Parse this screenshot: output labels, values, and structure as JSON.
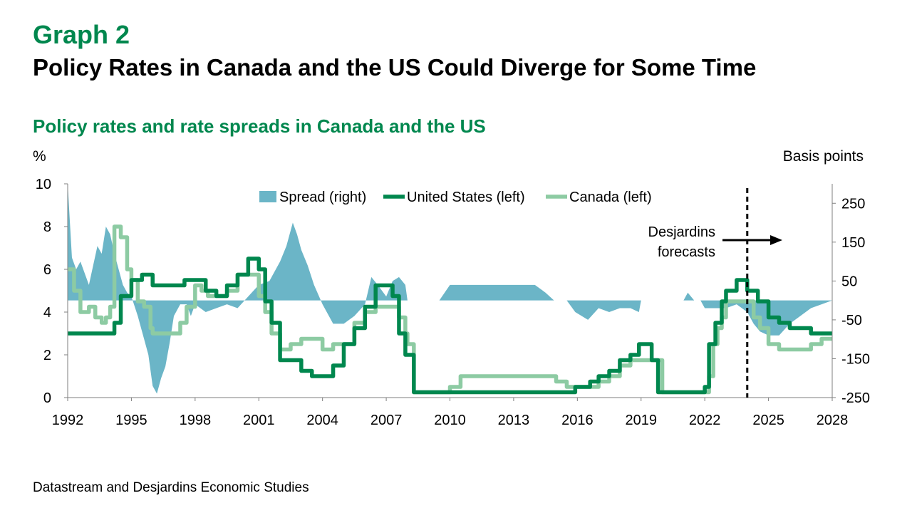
{
  "header": {
    "graph_number": "Graph 2",
    "title": "Policy Rates in Canada and the US Could Diverge for Some Time",
    "subtitle": "Policy rates and rate spreads in Canada and the US"
  },
  "footer": {
    "source": "Datastream and Desjardins Economic Studies"
  },
  "colors": {
    "spread": "#6bb5c7",
    "us": "#00874e",
    "canada": "#8dcba3",
    "title_green": "#00874e"
  },
  "chart_data": {
    "type": "line",
    "left_axis": {
      "label": "%",
      "min": 0,
      "max": 10,
      "ticks": [
        0,
        2,
        4,
        6,
        8,
        10
      ]
    },
    "right_axis": {
      "label": "Basis points",
      "min": -250,
      "max": 300,
      "ticks": [
        -250,
        -150,
        -50,
        50,
        150,
        250
      ]
    },
    "x_axis": {
      "min": 1992,
      "max": 2028,
      "ticks": [
        "1992",
        "1995",
        "1998",
        "2001",
        "2004",
        "2007",
        "2010",
        "2013",
        "2016",
        "2019",
        "2022",
        "2025",
        "2028"
      ]
    },
    "legend": {
      "position": "top-center"
    },
    "annotation": {
      "text_lines": [
        "Desjardins",
        "forecasts"
      ],
      "forecast_start": 2024.0
    },
    "series": [
      {
        "name": "Spread (right)",
        "type": "area",
        "axis": "right",
        "x": [
          1992.0,
          1992.2,
          1992.4,
          1992.6,
          1992.8,
          1993.0,
          1993.2,
          1993.4,
          1993.6,
          1993.8,
          1994.0,
          1994.2,
          1994.4,
          1994.6,
          1994.8,
          1995.0,
          1995.3,
          1995.6,
          1995.8,
          1996.0,
          1996.2,
          1996.4,
          1996.6,
          1996.8,
          1997.0,
          1997.3,
          1997.6,
          1997.8,
          1998.0,
          1998.5,
          1999.0,
          1999.5,
          2000.0,
          2000.5,
          2001.0,
          2001.5,
          2002.0,
          2002.3,
          2002.6,
          2002.8,
          2003.0,
          2003.3,
          2003.6,
          2004.0,
          2004.5,
          2005.0,
          2005.5,
          2006.0,
          2006.3,
          2006.6,
          2007.0,
          2007.3,
          2007.6,
          2007.9,
          2008.0,
          2008.2,
          2008.5,
          2009.0,
          2009.5,
          2010.0,
          2011.0,
          2012.0,
          2013.0,
          2014.0,
          2014.5,
          2014.9,
          2015.0,
          2015.5,
          2015.9,
          2016.5,
          2017.0,
          2017.5,
          2018.0,
          2018.5,
          2018.9,
          2019.0,
          2019.5,
          2020.0,
          2020.5,
          2021.0,
          2021.2,
          2021.5,
          2021.8,
          2022.0,
          2022.3,
          2022.6,
          2023.0,
          2023.5,
          2024.0,
          2024.3,
          2024.6,
          2025.0,
          2025.5,
          2026.0,
          2026.5,
          2027.0,
          2027.5,
          2028.0
        ],
        "values": [
          300,
          110,
          80,
          100,
          70,
          40,
          90,
          140,
          120,
          190,
          170,
          120,
          80,
          40,
          20,
          10,
          -40,
          -100,
          -140,
          -220,
          -240,
          -200,
          -170,
          -110,
          -40,
          -10,
          -10,
          -40,
          -10,
          -30,
          -20,
          -10,
          -20,
          10,
          40,
          50,
          100,
          140,
          200,
          170,
          130,
          90,
          40,
          -10,
          -60,
          -60,
          -40,
          -10,
          60,
          40,
          10,
          50,
          60,
          40,
          0,
          0,
          0,
          0,
          0,
          40,
          40,
          40,
          40,
          40,
          20,
          0,
          0,
          0,
          -30,
          -50,
          -20,
          -30,
          -20,
          -20,
          -30,
          0,
          0,
          0,
          0,
          0,
          20,
          0,
          0,
          -20,
          -20,
          -20,
          -20,
          -10,
          -30,
          -60,
          -80,
          -90,
          -90,
          -60,
          -40,
          -20,
          -10,
          0
        ]
      },
      {
        "name": "United States (left)",
        "type": "line",
        "axis": "left",
        "x": [
          1992.0,
          1992.8,
          1993.0,
          1993.3,
          1993.6,
          1994.0,
          1994.2,
          1994.5,
          1995.0,
          1995.5,
          1996.0,
          1996.5,
          1997.0,
          1997.5,
          1998.0,
          1998.5,
          1999.0,
          1999.5,
          2000.0,
          2000.5,
          2000.8,
          2001.0,
          2001.3,
          2001.6,
          2002.0,
          2002.5,
          2003.0,
          2003.5,
          2004.0,
          2004.5,
          2005.0,
          2005.5,
          2006.0,
          2006.5,
          2006.9,
          2007.0,
          2007.3,
          2007.6,
          2007.9,
          2008.0,
          2008.3,
          2008.6,
          2009.0,
          2010.0,
          2012.0,
          2014.0,
          2015.9,
          2016.2,
          2016.6,
          2017.0,
          2017.5,
          2018.0,
          2018.5,
          2018.9,
          2019.2,
          2019.5,
          2019.8,
          2020.2,
          2021.0,
          2022.0,
          2022.2,
          2022.5,
          2022.8,
          2023.0,
          2023.5,
          2024.0,
          2024.5,
          2025.0,
          2025.5,
          2026.0,
          2026.5,
          2027.0,
          2027.5,
          2028.0
        ],
        "values": [
          3.0,
          3.0,
          3.0,
          3.0,
          3.0,
          3.0,
          3.5,
          4.75,
          5.5,
          5.75,
          5.25,
          5.25,
          5.25,
          5.5,
          5.5,
          5.0,
          4.75,
          5.25,
          5.75,
          6.5,
          6.5,
          6.0,
          4.5,
          3.5,
          1.75,
          1.75,
          1.25,
          1.0,
          1.0,
          1.5,
          2.5,
          3.25,
          4.25,
          5.25,
          5.25,
          5.25,
          4.75,
          3.0,
          2.0,
          2.0,
          0.25,
          0.25,
          0.25,
          0.25,
          0.25,
          0.25,
          0.5,
          0.5,
          0.75,
          1.0,
          1.25,
          1.75,
          2.0,
          2.5,
          2.5,
          1.75,
          0.25,
          0.25,
          0.25,
          0.5,
          2.5,
          3.5,
          4.5,
          5.0,
          5.5,
          5.0,
          4.5,
          3.75,
          3.5,
          3.25,
          3.25,
          3.0,
          3.0,
          3.0
        ]
      },
      {
        "name": "Canada (left)",
        "type": "line",
        "axis": "left",
        "x": [
          1992.0,
          1992.3,
          1992.6,
          1993.0,
          1993.3,
          1993.6,
          1993.8,
          1994.0,
          1994.2,
          1994.5,
          1994.8,
          1995.0,
          1995.3,
          1995.6,
          1995.9,
          1996.0,
          1996.3,
          1996.6,
          1997.0,
          1997.3,
          1997.6,
          1998.0,
          1998.3,
          1998.6,
          1999.0,
          1999.5,
          2000.0,
          2000.5,
          2001.0,
          2001.3,
          2001.6,
          2002.0,
          2002.5,
          2003.0,
          2003.5,
          2004.0,
          2004.5,
          2005.0,
          2005.5,
          2006.0,
          2006.5,
          2006.9,
          2007.0,
          2007.3,
          2007.6,
          2007.9,
          2008.0,
          2008.3,
          2008.6,
          2009.0,
          2010.0,
          2010.5,
          2012.0,
          2014.0,
          2015.0,
          2015.5,
          2016.0,
          2016.5,
          2017.0,
          2017.5,
          2018.0,
          2018.5,
          2019.0,
          2019.5,
          2020.0,
          2021.0,
          2022.0,
          2022.2,
          2022.4,
          2022.6,
          2022.8,
          2023.0,
          2023.5,
          2024.0,
          2024.3,
          2024.6,
          2025.0,
          2025.5,
          2026.0,
          2026.5,
          2027.0,
          2027.5,
          2028.0
        ],
        "values": [
          6.0,
          5.0,
          4.0,
          4.25,
          3.75,
          3.5,
          3.75,
          4.25,
          8.0,
          7.5,
          6.0,
          5.5,
          4.5,
          4.25,
          3.25,
          3.0,
          3.0,
          3.0,
          3.0,
          3.5,
          4.25,
          5.25,
          5.0,
          4.75,
          4.75,
          5.0,
          5.75,
          5.75,
          4.75,
          4.0,
          3.0,
          2.25,
          2.5,
          2.75,
          2.75,
          2.25,
          2.5,
          2.5,
          3.5,
          4.0,
          4.25,
          4.25,
          4.25,
          4.25,
          3.75,
          3.0,
          2.5,
          0.25,
          0.25,
          0.25,
          0.5,
          1.0,
          1.0,
          1.0,
          0.75,
          0.5,
          0.5,
          0.5,
          0.75,
          1.0,
          1.5,
          1.75,
          1.75,
          1.75,
          0.25,
          0.25,
          0.25,
          1.0,
          2.5,
          3.25,
          3.75,
          4.5,
          4.5,
          4.5,
          3.75,
          3.25,
          2.5,
          2.25,
          2.25,
          2.25,
          2.5,
          2.75,
          2.75
        ]
      }
    ]
  }
}
